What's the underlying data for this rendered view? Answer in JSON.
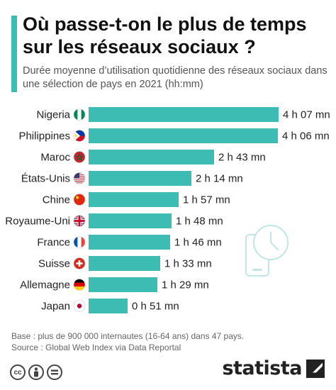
{
  "header": {
    "title": "Où passe-t-on le plus de temps sur les réseaux sociaux ?",
    "subtitle": "Durée moyenne d’utilisation quotidienne des réseaux sociaux dans une sélection de pays en 2021 (hh:mm)"
  },
  "chart_data": {
    "type": "bar",
    "orientation": "horizontal",
    "unit": "minutes",
    "categories": [
      "Nigeria",
      "Philippines",
      "Maroc",
      "États-Unis",
      "Chine",
      "Royaume-Uni",
      "France",
      "Suisse",
      "Allemagne",
      "Japan"
    ],
    "values": [
      247,
      246,
      163,
      134,
      117,
      108,
      106,
      93,
      89,
      51
    ],
    "value_labels": [
      "4 h 07 mn",
      "4 h 06 mn",
      "2 h 43 mn",
      "2 h 14 mn",
      "1 h 57 mn",
      "1 h 48 mn",
      "1 h 46 mn",
      "1 h 33 mn",
      "1 h 29 mn",
      "0 h 51 mn"
    ],
    "flags": [
      "nigeria-flag-icon",
      "philippines-flag-icon",
      "morocco-flag-icon",
      "usa-flag-icon",
      "china-flag-icon",
      "uk-flag-icon",
      "france-flag-icon",
      "switzerland-flag-icon",
      "germany-flag-icon",
      "japan-flag-icon"
    ],
    "bar_color": "#3dbcb4",
    "xlim": [
      0,
      247
    ],
    "grid": false,
    "legend": "none"
  },
  "illustration": {
    "icon": "phone-clock-icon",
    "color": "#bfe6e4"
  },
  "footer": {
    "base": "Base : plus de 900 000 internautes (16-64 ans) dans 47 pays.",
    "source": "Source : Global Web Index via Data Reportal",
    "license_icons": [
      "cc-icon",
      "by-icon",
      "nd-icon"
    ],
    "brand": "statista"
  },
  "colors": {
    "accent": "#3dbcb4",
    "title": "#111111",
    "text": "#555555"
  }
}
